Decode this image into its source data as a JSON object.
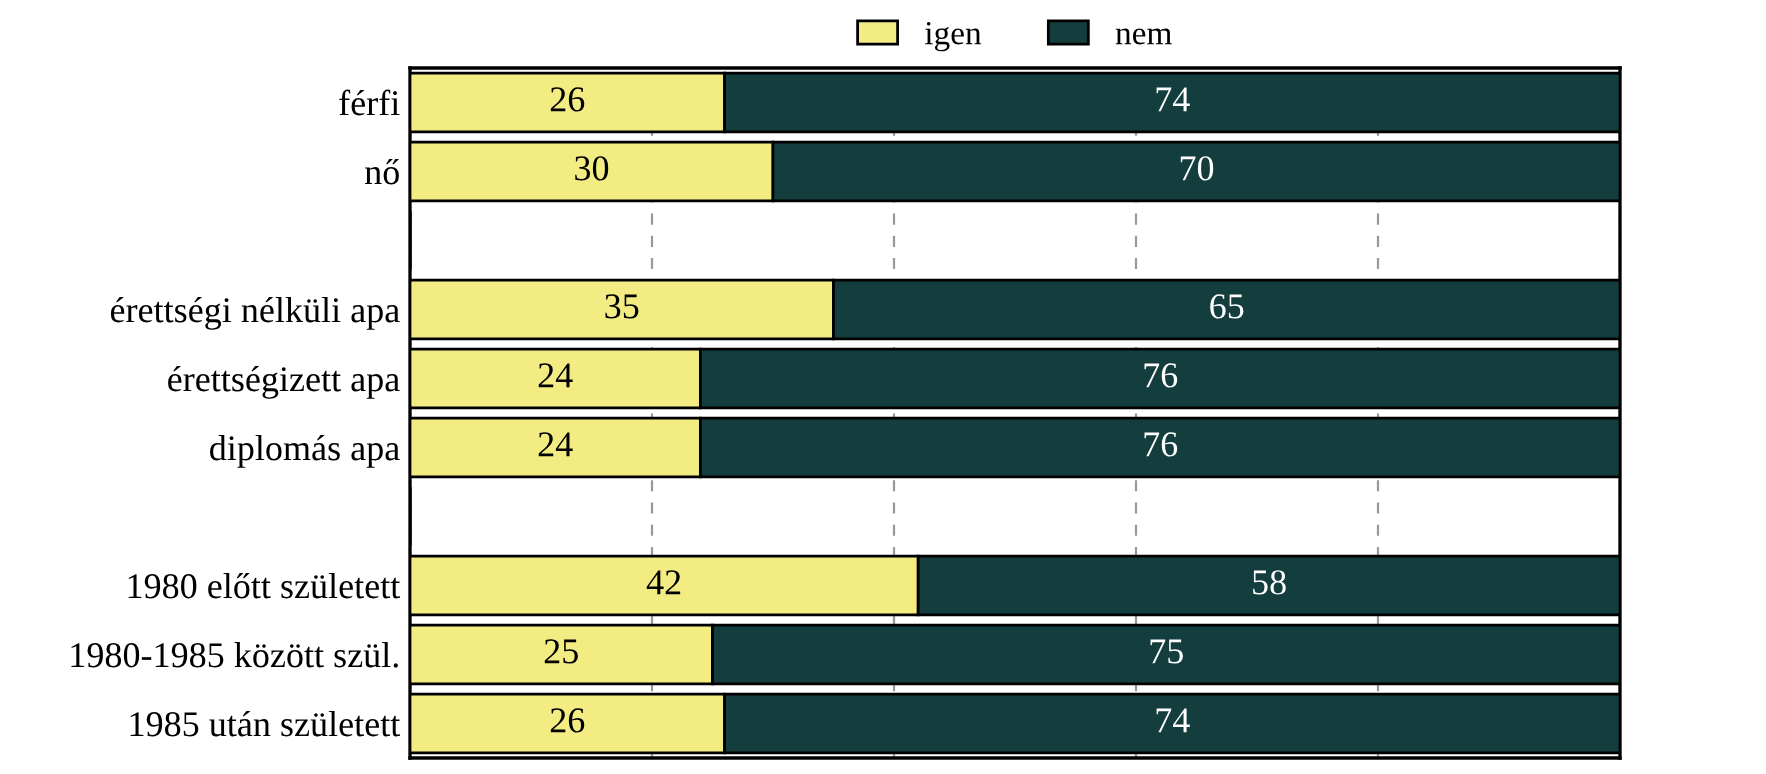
{
  "chart_data": {
    "type": "bar",
    "orientation": "horizontal",
    "stacked": true,
    "categories": [
      "férfi",
      "nő",
      null,
      "érettségi nélküli apa",
      "érettségizett apa",
      "diplomás apa",
      null,
      "1980 előtt született",
      "1980-1985 között szül.",
      "1985 után született"
    ],
    "series": [
      {
        "name": "igen",
        "color": "#f3ec82",
        "values": [
          26,
          30,
          null,
          35,
          24,
          24,
          null,
          42,
          25,
          26
        ]
      },
      {
        "name": "nem",
        "color": "#143d3d",
        "values": [
          74,
          70,
          null,
          65,
          76,
          76,
          null,
          58,
          75,
          74
        ]
      }
    ],
    "xlim": [
      0,
      100
    ],
    "xticks": [
      {
        "value": 0,
        "label": null
      },
      {
        "value": 20,
        "label": null
      },
      {
        "value": 40,
        "label": null
      },
      {
        "value": 60,
        "label": null
      },
      {
        "value": 80,
        "label": null
      },
      {
        "value": 100,
        "label": null
      }
    ],
    "tick_labels": "y",
    "grid": "x",
    "legend": "top",
    "data_labels": true
  }
}
